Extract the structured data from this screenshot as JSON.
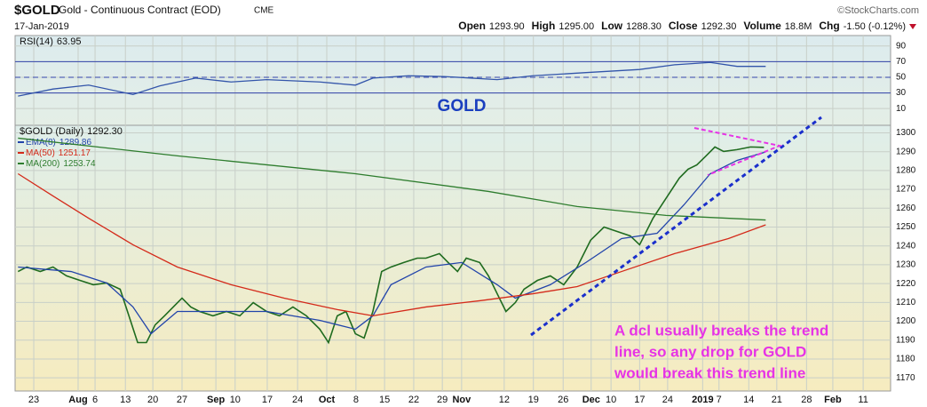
{
  "header": {
    "symbol": "$GOLD",
    "name": "Gold - Continuous Contract (EOD)",
    "exchange": "CME",
    "date": "17-Jan-2019",
    "source": "©StockCharts.com",
    "stats": [
      {
        "label": "Open",
        "value": "1293.90"
      },
      {
        "label": "High",
        "value": "1295.00"
      },
      {
        "label": "Low",
        "value": "1288.30"
      },
      {
        "label": "Close",
        "value": "1292.30"
      },
      {
        "label": "Volume",
        "value": "18.8M"
      },
      {
        "label": "Chg",
        "value": "-1.50 (-0.12%)"
      }
    ]
  },
  "chart_data": [
    {
      "type": "line",
      "annotation": "GOLD",
      "ylim": [
        -11.4,
        103.4
      ],
      "yticks": [
        10,
        30,
        50,
        70,
        90
      ],
      "levels": [
        70,
        50,
        30
      ],
      "grid": true,
      "series": [
        {
          "name": "RSI(14)",
          "last_label": "63.95",
          "color": "#3355aa",
          "x": [
            0.5,
            6.5,
            12.6,
            20.2,
            24.8,
            30.9,
            37.0,
            43.1,
            52.2,
            58.3,
            61.3,
            67.4,
            73.5,
            82.6,
            88.7,
            97.8,
            107.0,
            113.0,
            119.1,
            123.7,
            128.6
          ],
          "values": [
            26,
            35,
            40,
            28,
            39,
            49,
            44,
            47,
            44,
            40,
            49,
            52,
            51,
            47,
            52,
            56,
            60,
            66,
            69,
            64,
            63.95
          ]
        }
      ]
    },
    {
      "type": "line",
      "ylim": [
        1163,
        1304
      ],
      "yticks": [
        1170,
        1180,
        1190,
        1200,
        1210,
        1220,
        1230,
        1240,
        1250,
        1260,
        1270,
        1280,
        1290,
        1300
      ],
      "xlim": [
        0,
        150
      ],
      "grid": true,
      "xticks": [
        {
          "value": 3.2,
          "label": "23"
        },
        {
          "value": 10.8,
          "label": "Aug"
        },
        {
          "value": 13.7,
          "label": "6"
        },
        {
          "value": 18.9,
          "label": "13"
        },
        {
          "value": 23.6,
          "label": "20"
        },
        {
          "value": 28.6,
          "label": "27"
        },
        {
          "value": 34.4,
          "label": "Sep"
        },
        {
          "value": 37.7,
          "label": "10"
        },
        {
          "value": 43.2,
          "label": "17"
        },
        {
          "value": 48.4,
          "label": "24"
        },
        {
          "value": 53.4,
          "label": "Oct"
        },
        {
          "value": 58.4,
          "label": "8"
        },
        {
          "value": 63.3,
          "label": "15"
        },
        {
          "value": 68.3,
          "label": "22"
        },
        {
          "value": 73.2,
          "label": "29"
        },
        {
          "value": 76.5,
          "label": "Nov"
        },
        {
          "value": 83.8,
          "label": "12"
        },
        {
          "value": 88.8,
          "label": "19"
        },
        {
          "value": 93.9,
          "label": "26"
        },
        {
          "value": 98.7,
          "label": "Dec"
        },
        {
          "value": 102.1,
          "label": "10"
        },
        {
          "value": 107.0,
          "label": "17"
        },
        {
          "value": 111.8,
          "label": "24"
        },
        {
          "value": 117.8,
          "label": "2019"
        },
        {
          "value": 120.6,
          "label": "7"
        },
        {
          "value": 125.7,
          "label": "14"
        },
        {
          "value": 130.5,
          "label": "21"
        },
        {
          "value": 135.6,
          "label": "28"
        },
        {
          "value": 140.1,
          "label": "Feb"
        },
        {
          "value": 145.3,
          "label": "11"
        }
      ],
      "annotation": [
        "A dcl usually breaks the trend",
        "line, so any drop for GOLD",
        "would break this trend line"
      ],
      "series": [
        {
          "name": "$GOLD (Daily)",
          "last_label": "1292.30",
          "color": "#1f6b1f",
          "x": [
            0.5,
            2.0,
            4.3,
            6.5,
            8.8,
            11.1,
            13.4,
            15.7,
            18.0,
            19.5,
            21.0,
            22.5,
            24.0,
            25.6,
            27.1,
            28.6,
            30.1,
            31.6,
            33.9,
            36.2,
            38.5,
            40.8,
            43.1,
            45.3,
            47.6,
            49.9,
            52.2,
            53.7,
            55.2,
            56.7,
            58.3,
            59.8,
            61.3,
            62.8,
            64.4,
            66.6,
            68.9,
            70.4,
            72.7,
            74.2,
            75.8,
            77.3,
            79.6,
            81.1,
            82.6,
            84.1,
            85.7,
            87.2,
            89.5,
            91.7,
            94.0,
            96.3,
            98.6,
            100.9,
            103.1,
            105.4,
            107.0,
            109.3,
            110.8,
            112.3,
            113.8,
            115.3,
            116.8,
            118.4,
            119.9,
            121.4,
            123.7,
            126.0,
            128.3
          ],
          "values": [
            1226.4,
            1228.8,
            1226.4,
            1228.8,
            1224.1,
            1221.7,
            1219.4,
            1220.3,
            1217.0,
            1202.9,
            1188.7,
            1188.7,
            1198.1,
            1202.9,
            1207.6,
            1212.3,
            1207.6,
            1205.2,
            1202.9,
            1205.2,
            1202.9,
            1209.9,
            1205.2,
            1202.9,
            1207.6,
            1202.9,
            1195.8,
            1188.7,
            1202.9,
            1205.2,
            1193.4,
            1191.1,
            1205.2,
            1226.4,
            1228.8,
            1231.2,
            1233.5,
            1233.5,
            1235.9,
            1231.2,
            1226.4,
            1233.5,
            1231.2,
            1224.1,
            1214.6,
            1205.2,
            1209.9,
            1217.0,
            1221.7,
            1224.1,
            1219.4,
            1228.8,
            1243.0,
            1250.0,
            1247.7,
            1245.3,
            1240.6,
            1254.7,
            1261.8,
            1268.9,
            1276.0,
            1280.7,
            1283.0,
            1287.8,
            1292.5,
            1290.1,
            1291.1,
            1292.5,
            1292.3
          ]
        },
        {
          "name": "EMA(8)",
          "last_label": "1289.86",
          "color": "#2244aa",
          "x": [
            0.5,
            9.6,
            15.7,
            20.2,
            23.3,
            27.8,
            33.9,
            43.1,
            52.2,
            58.3,
            61.3,
            64.4,
            70.4,
            76.5,
            82.6,
            85.7,
            91.7,
            97.8,
            103.9,
            110.0,
            114.6,
            119.1,
            123.7,
            128.6
          ],
          "values": [
            1228.8,
            1226.4,
            1220.3,
            1207.6,
            1193.4,
            1205.2,
            1205.2,
            1205.2,
            1200.5,
            1195.8,
            1202.9,
            1219.4,
            1228.8,
            1231.2,
            1219.4,
            1212.3,
            1219.4,
            1231.2,
            1243.9,
            1246.7,
            1261.8,
            1278.3,
            1285.4,
            1289.86
          ]
        },
        {
          "name": "MA(50)",
          "last_label": "1251.17",
          "color": "#d42a1a",
          "x": [
            0.5,
            6.5,
            12.6,
            20.2,
            27.8,
            37.0,
            46.1,
            55.2,
            61.3,
            70.4,
            79.6,
            88.7,
            96.3,
            103.9,
            113.0,
            122.2,
            128.6
          ],
          "values": [
            1278.3,
            1266.5,
            1254.7,
            1240.6,
            1228.8,
            1219.4,
            1212.3,
            1206.2,
            1202.9,
            1207.6,
            1210.9,
            1214.6,
            1218.4,
            1226.4,
            1235.9,
            1243.9,
            1251.17
          ]
        },
        {
          "name": "MA(200)",
          "last_label": "1253.74",
          "color": "#2e7d2e",
          "x": [
            0.5,
            27.8,
            58.3,
            81.1,
            96.3,
            111.5,
            128.6
          ],
          "values": [
            1297.2,
            1287.8,
            1278.3,
            1268.9,
            1260.9,
            1256.2,
            1253.74
          ]
        }
      ]
    }
  ]
}
